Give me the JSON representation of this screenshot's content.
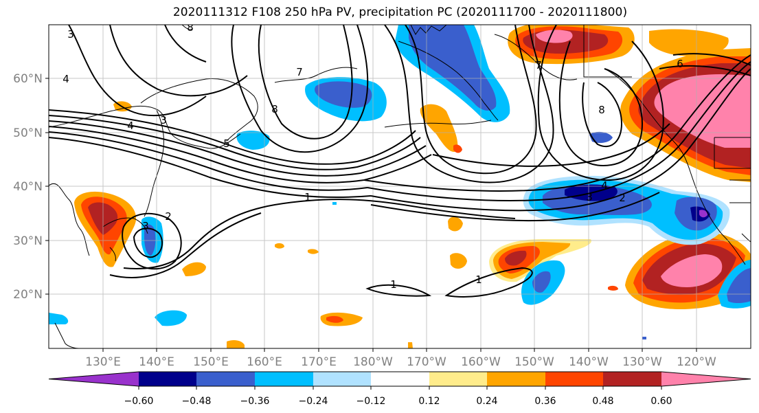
{
  "title": "2020111312 F108 250 hPa PV, precipitation PC (2020111700 - 2020111800)",
  "map": {
    "lat_labels": [
      "60°N",
      "50°N",
      "40°N",
      "30°N",
      "20°N"
    ],
    "lon_labels": [
      "130°E",
      "140°E",
      "150°E",
      "160°E",
      "170°E",
      "180°W",
      "170°W",
      "160°W",
      "150°W",
      "140°W",
      "130°W",
      "120°W"
    ],
    "contour_labels": [
      "3",
      "8",
      "4",
      "3",
      "4",
      "5",
      "8",
      "7",
      "7",
      "8",
      "6",
      "4",
      "3",
      "2",
      "1",
      "2",
      "3",
      "1",
      "1"
    ],
    "axis_label_color": "#808080"
  },
  "colorbar": {
    "tick_labels": [
      "−0.60",
      "−0.48",
      "−0.36",
      "−0.24",
      "−0.12",
      "0.12",
      "0.24",
      "0.36",
      "0.48",
      "0.60"
    ],
    "colors": [
      "#9932cc",
      "#00008b",
      "#3a5fcd",
      "#00bfff",
      "#b0e2ff",
      "#ffffff",
      "#ffec8b",
      "#ffa500",
      "#ff4500",
      "#b22222",
      "#ff82ab"
    ]
  }
}
